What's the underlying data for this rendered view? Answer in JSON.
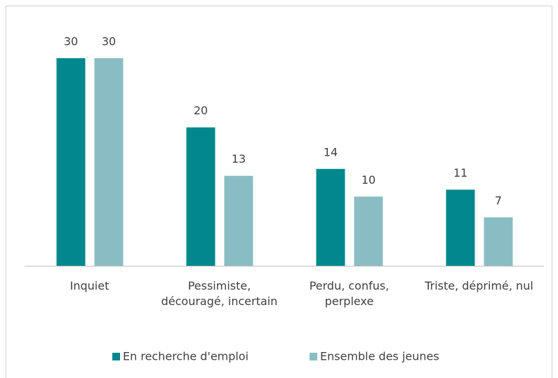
{
  "chart_data": {
    "type": "bar",
    "categories": [
      "Inquiet",
      "Pessimiste, découragé, incertain",
      "Perdu, confus, perplexe",
      "Triste, déprimé, nul"
    ],
    "series": [
      {
        "name": "En recherche d'emploi",
        "color": "#00888e",
        "values": [
          30,
          20,
          14,
          11
        ]
      },
      {
        "name": "Ensemble des jeunes",
        "color": "#89bdc3",
        "values": [
          30,
          13,
          10,
          7
        ]
      }
    ],
    "ylim": [
      0,
      35
    ],
    "legend": "bottom"
  }
}
